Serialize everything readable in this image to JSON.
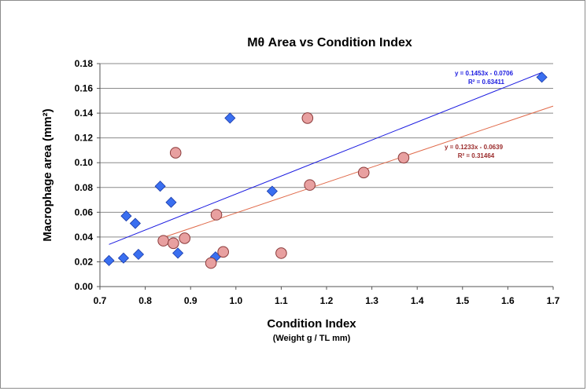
{
  "chart_data": {
    "type": "scatter",
    "title": "Mθ Area vs Condition Index",
    "xlabel": "Condition Index",
    "xlabel_sub": "(Weight g / TL mm)",
    "ylabel": "Macrophage area (mm²)",
    "xlim": [
      0.7,
      1.7
    ],
    "ylim": [
      0,
      0.18
    ],
    "x_ticks": [
      "0.7",
      "0.8",
      "0.9",
      "1.0",
      "1.1",
      "1.2",
      "1.3",
      "1.4",
      "1.5",
      "1.6",
      "1.7"
    ],
    "y_ticks": [
      "0.00",
      "0.02",
      "0.04",
      "0.06",
      "0.08",
      "0.10",
      "0.12",
      "0.14",
      "0.16",
      "0.18"
    ],
    "grid": "horizontal",
    "series": [
      {
        "marker": "diamond",
        "color": "#3a6ff0",
        "stroke": "#1a3aa8",
        "points": [
          [
            0.72,
            0.021
          ],
          [
            0.752,
            0.023
          ],
          [
            0.758,
            0.057
          ],
          [
            0.778,
            0.051
          ],
          [
            0.785,
            0.026
          ],
          [
            0.833,
            0.081
          ],
          [
            0.857,
            0.068
          ],
          [
            0.872,
            0.027
          ],
          [
            0.955,
            0.024
          ],
          [
            0.987,
            0.136
          ],
          [
            1.08,
            0.077
          ],
          [
            1.675,
            0.169
          ]
        ],
        "trendline": {
          "slope": 0.1453,
          "intercept": -0.0706,
          "color": "#1a1ae0",
          "equation": "y = 0.1453x - 0.0706",
          "r2": "R² = 0.63411"
        }
      },
      {
        "marker": "circle",
        "color": "#e8a0a0",
        "stroke": "#8a3a3a",
        "points": [
          [
            0.84,
            0.037
          ],
          [
            0.862,
            0.035
          ],
          [
            0.867,
            0.108
          ],
          [
            0.887,
            0.039
          ],
          [
            0.945,
            0.019
          ],
          [
            0.957,
            0.058
          ],
          [
            0.972,
            0.028
          ],
          [
            1.1,
            0.027
          ],
          [
            1.158,
            0.136
          ],
          [
            1.163,
            0.082
          ],
          [
            1.282,
            0.092
          ],
          [
            1.37,
            0.104
          ]
        ],
        "trendline": {
          "slope": 0.1233,
          "intercept": -0.0639,
          "color": "#e06a4a",
          "equation": "y = 0.1233x - 0.0639",
          "r2": "R² = 0.31464",
          "label_color": "#9a2a2a"
        }
      }
    ]
  }
}
